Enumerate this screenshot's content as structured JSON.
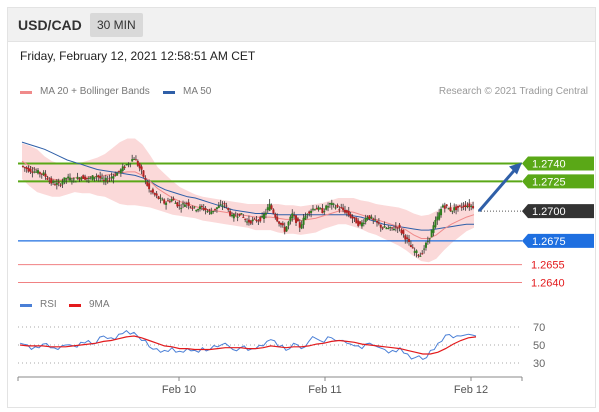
{
  "header": {
    "symbol": "USD/CAD",
    "timeframe": "30 MIN"
  },
  "timestamp": "Friday, February 12, 2021 12:58:51 AM CET",
  "legend": {
    "ma20_bb": "MA 20 + Bollinger Bands",
    "ma50": "MA 50",
    "credit": "Research © 2021 Trading Central",
    "rsi": "RSI",
    "rsi_ma": "9MA"
  },
  "colors": {
    "ma20": "#f08a8a",
    "bollinger_fill": "#fbd9d9",
    "ma50": "#2f5fa8",
    "resistance": "#5aa817",
    "pivot": "#333333",
    "support": "#1e6fe0",
    "support_minor": "#e31a1c",
    "candle_up": "#2f7d1f",
    "candle_down": "#b22222",
    "rsi": "#4a7fd6",
    "rsi_ma": "#e31a1c",
    "arrow": "#2f5fa8"
  },
  "chart_data": {
    "type": "candlestick",
    "instrument": "USD/CAD",
    "x_ticks": [
      "Feb 10",
      "Feb 11",
      "Feb 12"
    ],
    "levels": [
      {
        "value": 1.274,
        "label": "1.2740",
        "kind": "resistance"
      },
      {
        "value": 1.2725,
        "label": "1.2725",
        "kind": "resistance"
      },
      {
        "value": 1.27,
        "label": "1.2700",
        "kind": "pivot"
      },
      {
        "value": 1.2675,
        "label": "1.2675",
        "kind": "support"
      },
      {
        "value": 1.2655,
        "label": "1.2655",
        "kind": "support-minor"
      },
      {
        "value": 1.264,
        "label": "1.2640",
        "kind": "support-minor"
      }
    ],
    "price_ylim": [
      1.2632,
      1.2785
    ],
    "price_path": [
      1.2738,
      1.2735,
      1.2733,
      1.2731,
      1.2724,
      1.2722,
      1.2728,
      1.2726,
      1.2729,
      1.2727,
      1.273,
      1.2725,
      1.2729,
      1.2733,
      1.2739,
      1.2745,
      1.2733,
      1.2718,
      1.2712,
      1.2707,
      1.271,
      1.2704,
      1.2707,
      1.2702,
      1.2703,
      1.2699,
      1.2703,
      1.2706,
      1.2695,
      1.2698,
      1.2691,
      1.2692,
      1.2694,
      1.2705,
      1.2693,
      1.2684,
      1.2697,
      1.2687,
      1.2699,
      1.2703,
      1.27,
      1.2706,
      1.2703,
      1.27,
      1.2694,
      1.2688,
      1.2696,
      1.2691,
      1.2686,
      1.2685,
      1.2687,
      1.2678,
      1.2667,
      1.2663,
      1.2675,
      1.2691,
      1.2705,
      1.2701,
      1.2703,
      1.2705,
      1.2704
    ],
    "ma20": [
      1.2742,
      1.2738,
      1.2734,
      1.273,
      1.2727,
      1.2726,
      1.2727,
      1.2728,
      1.2728,
      1.2729,
      1.2729,
      1.273,
      1.2731,
      1.2732,
      1.2733,
      1.2733,
      1.273,
      1.2725,
      1.2719,
      1.2715,
      1.2711,
      1.2708,
      1.2706,
      1.2704,
      1.2702,
      1.2701,
      1.27,
      1.2699,
      1.2698,
      1.2697,
      1.2696,
      1.2695,
      1.2695,
      1.2695,
      1.2694,
      1.2693,
      1.2693,
      1.2692,
      1.2693,
      1.2694,
      1.2696,
      1.2698,
      1.27,
      1.27,
      1.2699,
      1.2697,
      1.2695,
      1.2693,
      1.2691,
      1.2689,
      1.2687,
      1.2684,
      1.268,
      1.2677,
      1.2677,
      1.268,
      1.2685,
      1.2689,
      1.2692,
      1.2695,
      1.2697
    ],
    "ma50": [
      1.2758,
      1.2756,
      1.2754,
      1.2752,
      1.2749,
      1.2746,
      1.2743,
      1.2741,
      1.2739,
      1.2737,
      1.2735,
      1.2734,
      1.2733,
      1.2732,
      1.2731,
      1.273,
      1.2728,
      1.2725,
      1.2721,
      1.2718,
      1.2716,
      1.2714,
      1.2712,
      1.2711,
      1.2709,
      1.2707,
      1.2705,
      1.2703,
      1.2701,
      1.27,
      1.2699,
      1.2698,
      1.2698,
      1.2698,
      1.2697,
      1.2697,
      1.2697,
      1.2697,
      1.2697,
      1.2697,
      1.2697,
      1.2697,
      1.2697,
      1.2697,
      1.2696,
      1.2695,
      1.2693,
      1.2691,
      1.2689,
      1.2688,
      1.2687,
      1.2686,
      1.2685,
      1.2684,
      1.2684,
      1.2685,
      1.2686,
      1.2687,
      1.2688,
      1.2689,
      1.2689
    ],
    "bb_width": [
      0.0015,
      0.0017,
      0.0018,
      0.0016,
      0.0015,
      0.0014,
      0.0013,
      0.0012,
      0.0013,
      0.0014,
      0.0016,
      0.0018,
      0.0022,
      0.0026,
      0.0028,
      0.0028,
      0.0026,
      0.0022,
      0.0018,
      0.0016,
      0.0014,
      0.0012,
      0.0011,
      0.001,
      0.001,
      0.001,
      0.001,
      0.001,
      0.001,
      0.001,
      0.001,
      0.0011,
      0.0011,
      0.0011,
      0.0012,
      0.0012,
      0.0012,
      0.0012,
      0.0012,
      0.0012,
      0.0011,
      0.0011,
      0.0011,
      0.0011,
      0.0012,
      0.0012,
      0.0013,
      0.0013,
      0.0014,
      0.0015,
      0.0016,
      0.0017,
      0.0018,
      0.0019,
      0.002,
      0.002,
      0.0018,
      0.0016,
      0.0014,
      0.0012,
      0.0011
    ],
    "rsi_ticks": [
      70,
      50,
      30
    ],
    "rsi_ylim": [
      20,
      80
    ],
    "rsi": [
      52,
      50,
      48,
      51,
      47,
      45,
      50,
      49,
      53,
      55,
      52,
      60,
      58,
      62,
      66,
      64,
      55,
      48,
      46,
      44,
      47,
      43,
      46,
      44,
      47,
      45,
      48,
      52,
      45,
      47,
      44,
      46,
      49,
      56,
      48,
      44,
      52,
      46,
      54,
      57,
      53,
      58,
      55,
      52,
      49,
      46,
      52,
      48,
      45,
      44,
      47,
      40,
      36,
      34,
      44,
      52,
      61,
      58,
      60,
      62,
      60
    ],
    "rsi_ma": [
      50,
      49,
      49,
      49,
      48,
      48,
      48,
      49,
      50,
      51,
      52,
      54,
      55,
      57,
      59,
      60,
      58,
      55,
      52,
      49,
      48,
      46,
      46,
      45,
      45,
      45,
      46,
      47,
      47,
      47,
      46,
      46,
      47,
      49,
      48,
      47,
      48,
      48,
      49,
      51,
      52,
      54,
      55,
      54,
      53,
      51,
      50,
      49,
      48,
      47,
      46,
      44,
      42,
      40,
      40,
      42,
      46,
      51,
      55,
      58,
      59
    ],
    "projection": {
      "from": 1.27,
      "to": 1.274
    }
  }
}
